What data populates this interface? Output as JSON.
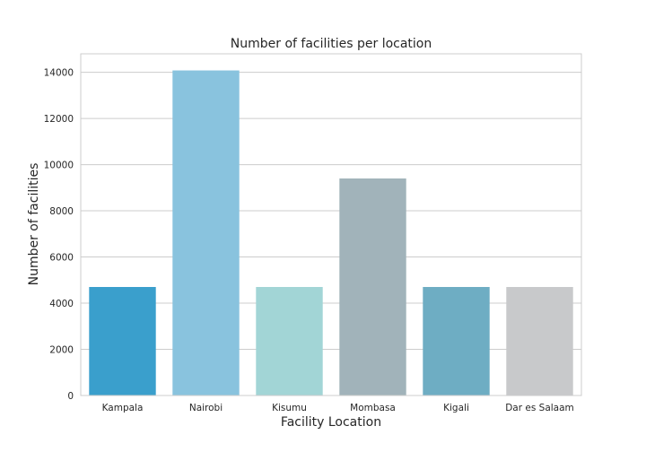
{
  "chart_data": {
    "type": "bar",
    "title": "Number of facilities per location",
    "xlabel": "Facility Location",
    "ylabel": "Number of facilities",
    "categories": [
      "Kampala",
      "Nairobi",
      "Kisumu",
      "Mombasa",
      "Kigali",
      "Dar es Salaam"
    ],
    "values": [
      4700,
      14080,
      4700,
      9400,
      4700,
      4700
    ],
    "colors": [
      "#3a9fcc",
      "#89c3de",
      "#a2d5d6",
      "#a1b3ba",
      "#6eadc3",
      "#c8c9cb"
    ],
    "ylim": [
      0,
      14800
    ],
    "yticks": [
      0,
      2000,
      4000,
      6000,
      8000,
      10000,
      12000,
      14000
    ],
    "ytick_labels": [
      "0",
      "2000",
      "4000",
      "6000",
      "8000",
      "10000",
      "12000",
      "14000"
    ],
    "grid": true,
    "grid_color": "#cccccc",
    "spine_color": "#cccccc"
  }
}
